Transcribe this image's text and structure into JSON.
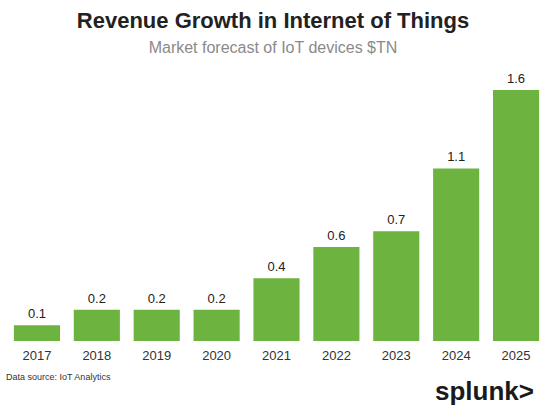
{
  "chart_data": {
    "type": "bar",
    "title": "Revenue Growth in Internet of Things",
    "subtitle": "Market forecast of IoT devices $TN",
    "categories": [
      "2017",
      "2018",
      "2019",
      "2020",
      "2021",
      "2022",
      "2023",
      "2024",
      "2025"
    ],
    "values": [
      0.1,
      0.2,
      0.2,
      0.2,
      0.4,
      0.6,
      0.7,
      1.1,
      1.6
    ],
    "color": "#6db33f",
    "ylim": [
      0,
      1.6
    ],
    "grid": false,
    "data_labels": true,
    "tick_labels": "x",
    "annotations": [
      "Data source: IoT Analytics",
      "splunk>"
    ]
  }
}
